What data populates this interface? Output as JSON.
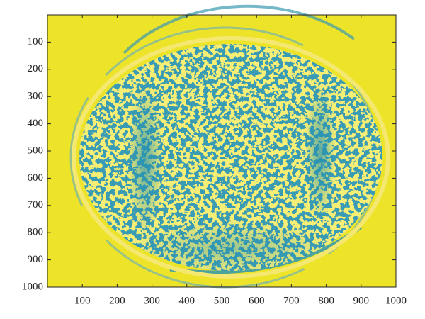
{
  "chart_data": {
    "type": "image",
    "xlim": [
      0,
      1000
    ],
    "ylim": [
      0,
      1000
    ],
    "y_direction": "reverse",
    "xticks": [
      100,
      200,
      300,
      400,
      500,
      600,
      700,
      800,
      900,
      1000
    ],
    "yticks": [
      100,
      200,
      300,
      400,
      500,
      600,
      700,
      800,
      900,
      1000
    ]
  }
}
